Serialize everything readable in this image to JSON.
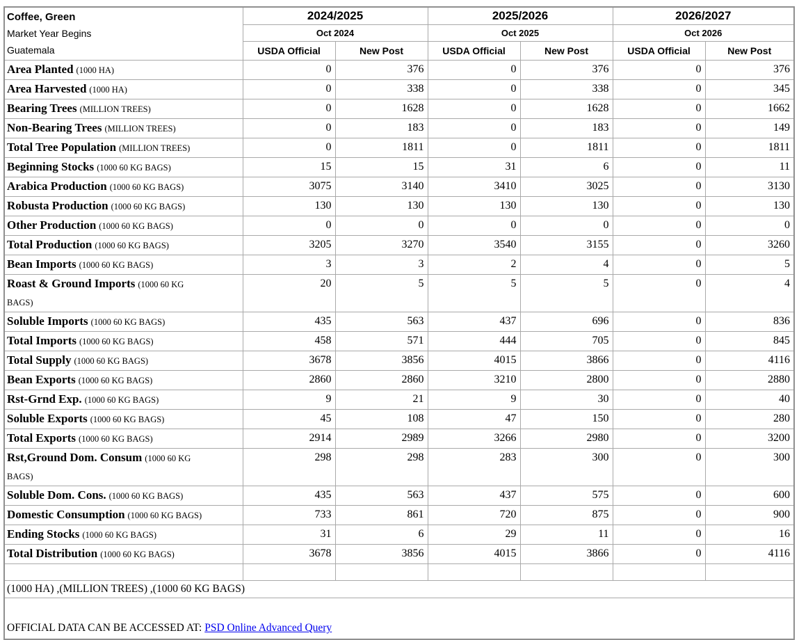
{
  "header": {
    "product": "Coffee, Green",
    "market_year_label": "Market Year Begins",
    "country": "Guatemala",
    "years": [
      {
        "label": "2024/2025",
        "begins": "Oct 2024"
      },
      {
        "label": "2025/2026",
        "begins": "Oct 2025"
      },
      {
        "label": "2026/2027",
        "begins": "Oct 2026"
      }
    ],
    "source_columns": [
      "USDA Official",
      "New Post"
    ]
  },
  "rows": [
    {
      "attribute": "Area Planted",
      "unit": "(1000 HA)",
      "values": [
        "0",
        "376",
        "0",
        "376",
        "0",
        "376"
      ]
    },
    {
      "attribute": "Area Harvested",
      "unit": "(1000 HA)",
      "values": [
        "0",
        "338",
        "0",
        "338",
        "0",
        "345"
      ]
    },
    {
      "attribute": "Bearing Trees",
      "unit": "(MILLION TREES)",
      "values": [
        "0",
        "1628",
        "0",
        "1628",
        "0",
        "1662"
      ]
    },
    {
      "attribute": "Non-Bearing Trees",
      "unit": "(MILLION TREES)",
      "values": [
        "0",
        "183",
        "0",
        "183",
        "0",
        "149"
      ]
    },
    {
      "attribute": "Total Tree Population",
      "unit": "(MILLION TREES)",
      "values": [
        "0",
        "1811",
        "0",
        "1811",
        "0",
        "1811"
      ]
    },
    {
      "attribute": "Beginning Stocks",
      "unit": "(1000 60 KG BAGS)",
      "values": [
        "15",
        "15",
        "31",
        "6",
        "0",
        "11"
      ]
    },
    {
      "attribute": "Arabica Production",
      "unit": "(1000 60 KG BAGS)",
      "values": [
        "3075",
        "3140",
        "3410",
        "3025",
        "0",
        "3130"
      ]
    },
    {
      "attribute": "Robusta Production",
      "unit": "(1000 60 KG BAGS)",
      "values": [
        "130",
        "130",
        "130",
        "130",
        "0",
        "130"
      ]
    },
    {
      "attribute": "Other Production",
      "unit": "(1000 60 KG BAGS)",
      "values": [
        "0",
        "0",
        "0",
        "0",
        "0",
        "0"
      ]
    },
    {
      "attribute": "Total Production",
      "unit": "(1000 60 KG BAGS)",
      "values": [
        "3205",
        "3270",
        "3540",
        "3155",
        "0",
        "3260"
      ]
    },
    {
      "attribute": "Bean Imports",
      "unit": "(1000 60 KG BAGS)",
      "values": [
        "3",
        "3",
        "2",
        "4",
        "0",
        "5"
      ]
    },
    {
      "attribute": "Roast & Ground Imports",
      "unit": "(1000 60 KG BAGS)",
      "values": [
        "20",
        "5",
        "5",
        "5",
        "0",
        "4"
      ],
      "tall": true
    },
    {
      "attribute": "Soluble Imports",
      "unit": "(1000 60 KG BAGS)",
      "values": [
        "435",
        "563",
        "437",
        "696",
        "0",
        "836"
      ]
    },
    {
      "attribute": "Total Imports",
      "unit": "(1000 60 KG BAGS)",
      "values": [
        "458",
        "571",
        "444",
        "705",
        "0",
        "845"
      ]
    },
    {
      "attribute": "Total Supply",
      "unit": "(1000 60 KG BAGS)",
      "values": [
        "3678",
        "3856",
        "4015",
        "3866",
        "0",
        "4116"
      ]
    },
    {
      "attribute": "Bean Exports",
      "unit": "(1000 60 KG BAGS)",
      "values": [
        "2860",
        "2860",
        "3210",
        "2800",
        "0",
        "2880"
      ]
    },
    {
      "attribute": "Rst-Grnd Exp.",
      "unit": "(1000 60 KG BAGS)",
      "values": [
        "9",
        "21",
        "9",
        "30",
        "0",
        "40"
      ]
    },
    {
      "attribute": "Soluble Exports",
      "unit": "(1000 60 KG BAGS)",
      "values": [
        "45",
        "108",
        "47",
        "150",
        "0",
        "280"
      ]
    },
    {
      "attribute": "Total Exports",
      "unit": "(1000 60 KG BAGS)",
      "values": [
        "2914",
        "2989",
        "3266",
        "2980",
        "0",
        "3200"
      ]
    },
    {
      "attribute": "Rst,Ground Dom. Consum",
      "unit": "(1000 60 KG BAGS)",
      "values": [
        "298",
        "298",
        "283",
        "300",
        "0",
        "300"
      ],
      "tall": true
    },
    {
      "attribute": "Soluble Dom. Cons.",
      "unit": "(1000 60 KG BAGS)",
      "values": [
        "435",
        "563",
        "437",
        "575",
        "0",
        "600"
      ]
    },
    {
      "attribute": "Domestic Consumption",
      "unit": "(1000 60 KG BAGS)",
      "values": [
        "733",
        "861",
        "720",
        "875",
        "0",
        "900"
      ]
    },
    {
      "attribute": "Ending Stocks",
      "unit": "(1000 60 KG BAGS)",
      "values": [
        "31",
        "6",
        "29",
        "11",
        "0",
        "16"
      ]
    },
    {
      "attribute": "Total Distribution",
      "unit": "(1000 60 KG BAGS)",
      "values": [
        "3678",
        "3856",
        "4015",
        "3866",
        "0",
        "4116"
      ]
    }
  ],
  "footer": {
    "units_note": "(1000 HA) ,(MILLION TREES) ,(1000 60 KG BAGS)",
    "access_prefix": "OFFICIAL DATA CAN BE ACCESSED AT: ",
    "link_text": "PSD Online Advanced Query",
    "link_color": "#0000EE"
  }
}
